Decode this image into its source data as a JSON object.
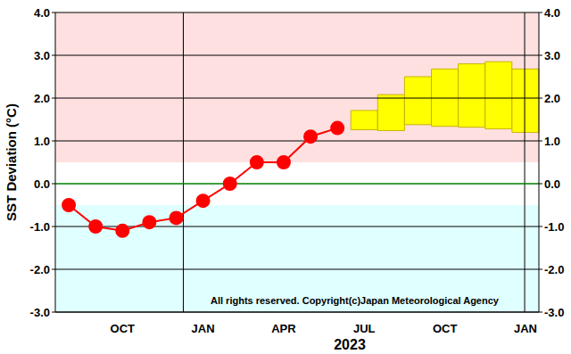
{
  "chart_data": {
    "type": "line",
    "ylabel": "SST Deviation (°C)",
    "xlabel": "2023",
    "annotation": "All rights reserved. Copyright(c)Japan Meteorological Agency",
    "categories": [
      null,
      null,
      "OCT",
      null,
      null,
      "JAN",
      null,
      null,
      "APR",
      null,
      null,
      "JUL",
      null,
      null,
      "OCT",
      null,
      null,
      "JAN"
    ],
    "values": [
      -0.5,
      -1.0,
      -1.1,
      -0.9,
      -0.8,
      -0.4,
      0.0,
      0.5,
      0.5,
      1.1,
      1.3,
      null,
      null,
      null,
      null,
      null,
      null,
      null
    ],
    "color": "#ff0000",
    "marker": "circle",
    "forecast_range": {
      "low": [
        null,
        null,
        null,
        null,
        null,
        null,
        null,
        null,
        null,
        null,
        null,
        1.26,
        1.24,
        1.38,
        1.34,
        1.32,
        1.28,
        1.2
      ],
      "high": [
        null,
        null,
        null,
        null,
        null,
        null,
        null,
        null,
        null,
        null,
        null,
        1.71,
        2.08,
        2.5,
        2.68,
        2.8,
        2.85,
        2.68
      ],
      "color": "#ffff00"
    },
    "ylim": [
      -3,
      4
    ],
    "yticks": [
      {
        "value": -3,
        "label": "-3.0"
      },
      {
        "value": -2,
        "label": "-2.0"
      },
      {
        "value": -1,
        "label": "-1.0"
      },
      {
        "value": 0,
        "label": "0.0"
      },
      {
        "value": 1,
        "label": "1.0"
      },
      {
        "value": 2,
        "label": "2.0"
      },
      {
        "value": 3,
        "label": "3.0"
      },
      {
        "value": 4,
        "label": "4.0"
      }
    ],
    "grid": true,
    "shaded_ranges": [
      {
        "from": 0.5,
        "to": 4,
        "color": "#ffe0e0"
      },
      {
        "from": -3,
        "to": -0.5,
        "color": "#e0ffff"
      }
    ],
    "reference_lines": [
      {
        "y": 0,
        "color": "#00c000"
      }
    ],
    "year_starts": [
      5,
      17
    ]
  }
}
